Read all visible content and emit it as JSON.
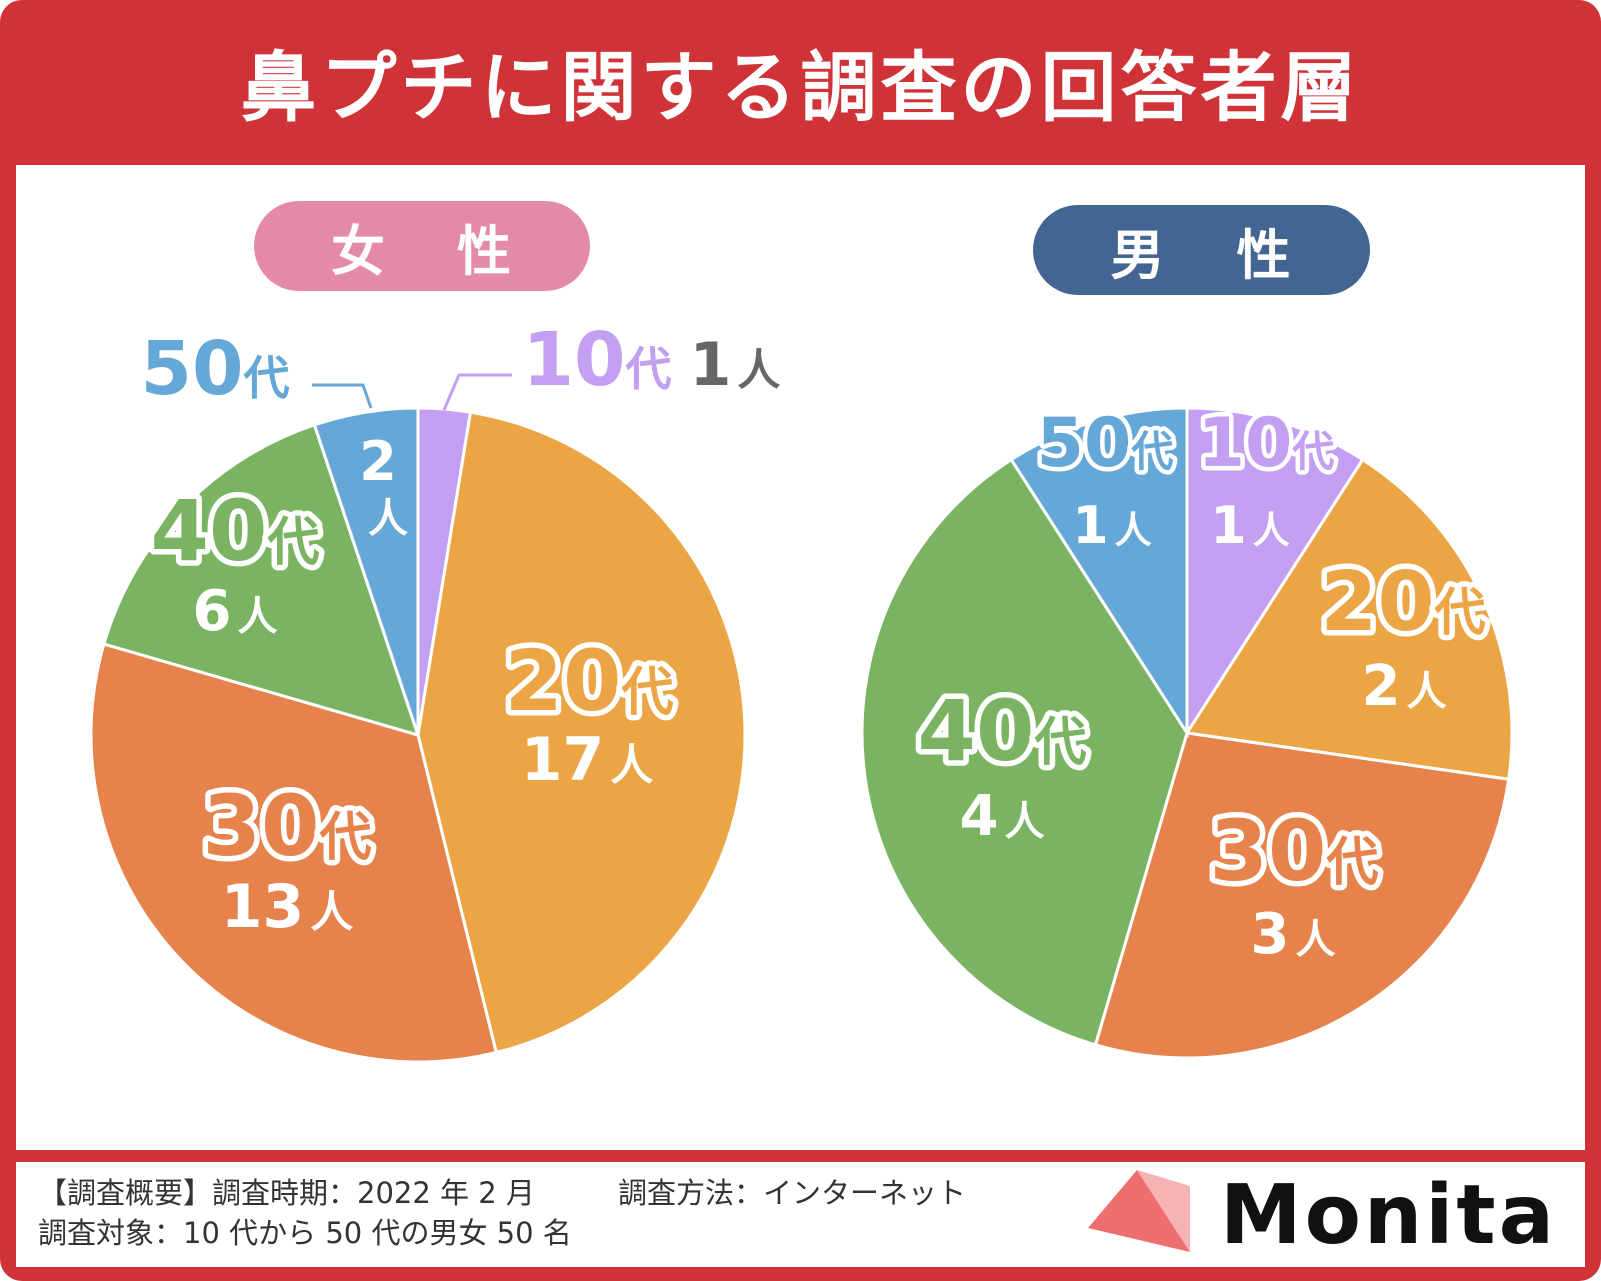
{
  "title": "鼻プチに関する調査の回答者層",
  "colors": {
    "frame": "#cf3337",
    "female_pill": "#e389a9",
    "male_pill": "#436592",
    "teen": "#c39ff2",
    "twenties": "#eba544",
    "thirties": "#e6834c",
    "forties": "#7ab462",
    "fifties": "#65a8d8",
    "logo": "#ef6e70"
  },
  "chart_data": [
    {
      "type": "pie",
      "title": "女　性",
      "title_parts": [
        "女",
        "性"
      ],
      "categories": [
        "10代",
        "20代",
        "30代",
        "40代",
        "50代"
      ],
      "values": [
        1,
        17,
        13,
        6,
        2
      ],
      "unit": "人",
      "labels": [
        {
          "age_num": "10",
          "age_suffix": "代",
          "count": "1",
          "unit": "人"
        },
        {
          "age_num": "20",
          "age_suffix": "代",
          "count": "17",
          "unit": "人"
        },
        {
          "age_num": "30",
          "age_suffix": "代",
          "count": "13",
          "unit": "人"
        },
        {
          "age_num": "40",
          "age_suffix": "代",
          "count": "6",
          "unit": "人"
        },
        {
          "age_num": "50",
          "age_suffix": "代",
          "count": "2",
          "unit": "人"
        }
      ]
    },
    {
      "type": "pie",
      "title": "男　性",
      "title_parts": [
        "男",
        "性"
      ],
      "categories": [
        "10代",
        "20代",
        "30代",
        "40代",
        "50代"
      ],
      "values": [
        1,
        2,
        3,
        4,
        1
      ],
      "unit": "人",
      "labels": [
        {
          "age_num": "10",
          "age_suffix": "代",
          "count": "1",
          "unit": "人"
        },
        {
          "age_num": "20",
          "age_suffix": "代",
          "count": "2",
          "unit": "人"
        },
        {
          "age_num": "30",
          "age_suffix": "代",
          "count": "3",
          "unit": "人"
        },
        {
          "age_num": "40",
          "age_suffix": "代",
          "count": "4",
          "unit": "人"
        },
        {
          "age_num": "50",
          "age_suffix": "代",
          "count": "1",
          "unit": "人"
        }
      ]
    }
  ],
  "footer": {
    "line1": "【調査概要】調査時期：2022 年 2 月",
    "method": "調査方法：インターネット",
    "line2": "調査対象：10 代から 50 代の男女 50 名"
  },
  "logo": {
    "text": "Monita"
  }
}
